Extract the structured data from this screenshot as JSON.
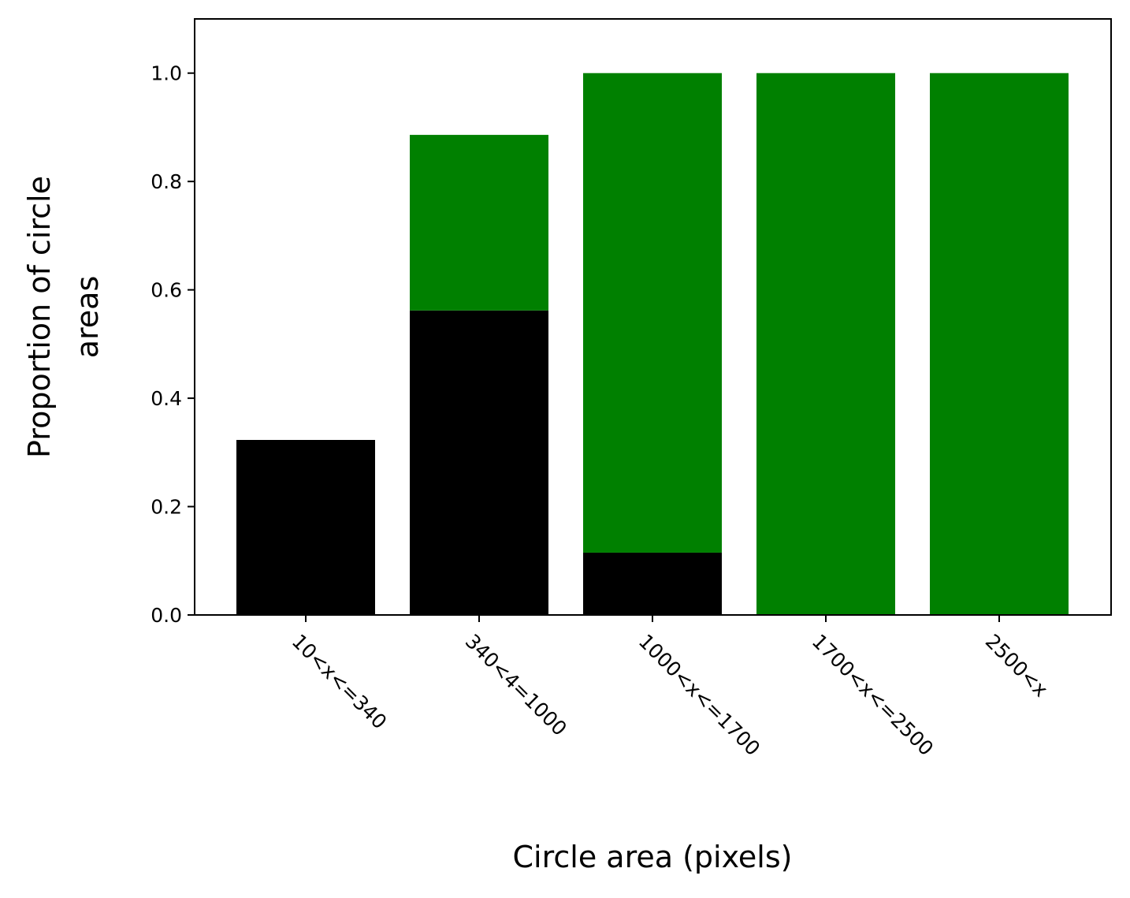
{
  "chart_data": {
    "type": "bar",
    "stacked": true,
    "title": "",
    "xlabel": "Circle area (pixels)",
    "ylabel_lines": [
      "Proportion of circle",
      "areas"
    ],
    "categories": [
      "10<x<=340",
      "340<4=1000",
      "1000<x<=1700",
      "1700<x<=2500",
      "2500<x"
    ],
    "series": [
      {
        "color": "#000000",
        "values": [
          0.323,
          0.562,
          0.115,
          0.0,
          0.0
        ]
      },
      {
        "color": "#008000",
        "values": [
          0.0,
          0.324,
          0.885,
          1.0,
          1.0
        ]
      }
    ],
    "ylim": [
      0,
      1.1
    ],
    "yticks": [
      0.0,
      0.2,
      0.4,
      0.6,
      0.8,
      1.0
    ],
    "ytick_labels": [
      "0.0",
      "0.2",
      "0.4",
      "0.6",
      "0.8",
      "1.0"
    ],
    "xtick_rotation": -45,
    "grid": false,
    "legend": "none"
  }
}
